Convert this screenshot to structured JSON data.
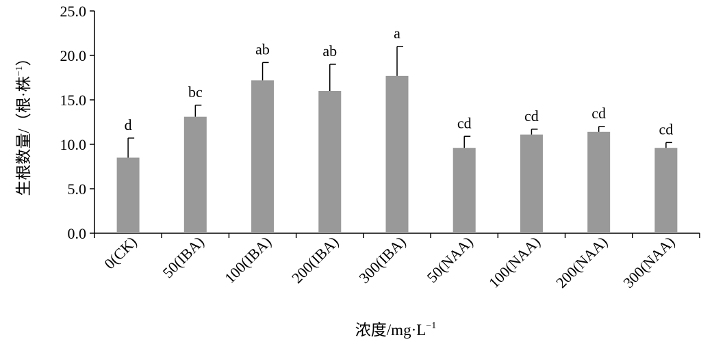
{
  "chart_data": {
    "type": "bar",
    "xlabel": "浓度/mg·L",
    "xlabel_sup": "−1",
    "ylabel": "生根数量/（根·株",
    "ylabel_sup": "−1",
    "ylabel_close": "）",
    "ylim": [
      0,
      25
    ],
    "yticks": [
      "0.0",
      "5.0",
      "10.0",
      "15.0",
      "20.0",
      "25.0"
    ],
    "categories": [
      "0(CK)",
      "50(IBA)",
      "100(IBA)",
      "200(IBA)",
      "300(IBA)",
      "50(NAA)",
      "100(NAA)",
      "200(NAA)",
      "300(NAA)"
    ],
    "values": [
      8.5,
      13.1,
      17.2,
      16.0,
      17.7,
      9.6,
      11.1,
      11.4,
      9.6
    ],
    "errors": [
      2.2,
      1.3,
      2.0,
      3.0,
      3.3,
      1.3,
      0.6,
      0.6,
      0.6
    ],
    "significance": [
      "d",
      "bc",
      "ab",
      "ab",
      "a",
      "cd",
      "cd",
      "cd",
      "cd"
    ],
    "bar_color": "#999999",
    "grid": false,
    "legend": "none"
  }
}
